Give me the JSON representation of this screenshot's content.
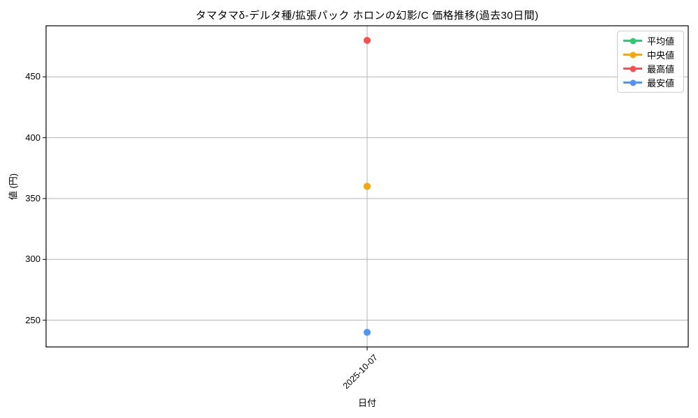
{
  "chart_data": {
    "type": "line",
    "title": "タマタマδ-デルタ種/拡張パック ホロンの幻影/C 価格推移(過去30日間)",
    "xlabel": "日付",
    "ylabel": "値 (円)",
    "x": [
      "2025-10-07"
    ],
    "series": [
      {
        "name": "平均値",
        "color": "#2ecc71",
        "values": [
          360
        ]
      },
      {
        "name": "中央値",
        "color": "#ffa500",
        "values": [
          360
        ]
      },
      {
        "name": "最高値",
        "color": "#ff4d4d",
        "values": [
          480
        ]
      },
      {
        "name": "最安値",
        "color": "#4d94ff",
        "values": [
          240
        ]
      }
    ],
    "ylim": [
      228,
      492
    ],
    "yticks": [
      250,
      300,
      350,
      400,
      450
    ],
    "grid": true,
    "legend_position": "upper right",
    "note": "mean point (360) is hidden behind median point"
  },
  "colors": {
    "grid": "#b2b2b2",
    "spine": "#000000",
    "background": "#ffffff",
    "legend_border": "#cccccc"
  }
}
